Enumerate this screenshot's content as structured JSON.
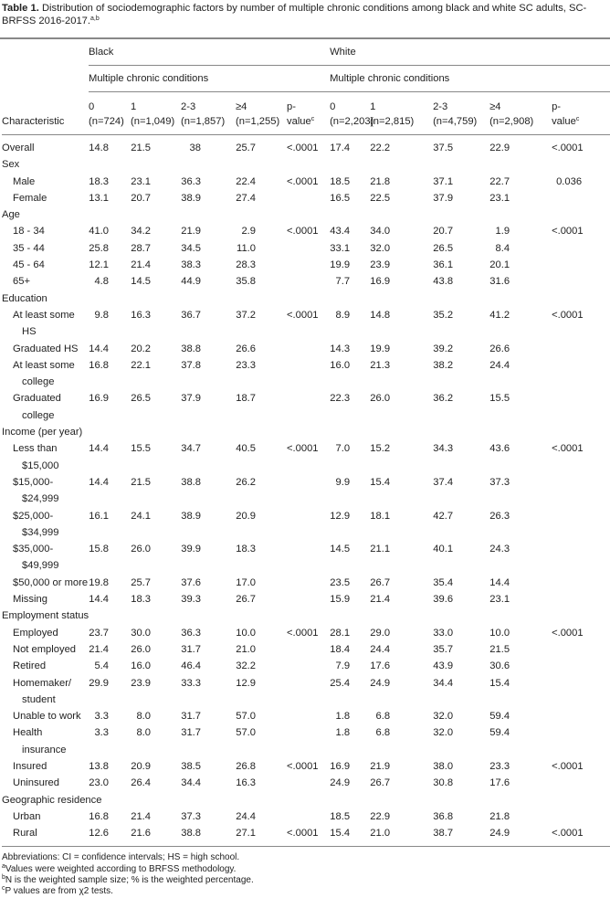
{
  "caption": {
    "label": "Table 1.",
    "text": "Distribution of sociodemographic factors by number of multiple chronic conditions among black and white SC adults, SC-BRFSS 2016-2017.",
    "sup": "a,b"
  },
  "groups": {
    "black": "Black",
    "white": "White",
    "sub": "Multiple chronic conditions"
  },
  "headers": {
    "characteristic": "Characteristic",
    "black": [
      {
        "l1": "0",
        "l2": "(n=724)"
      },
      {
        "l1": "1",
        "l2": "(n=1,049)"
      },
      {
        "l1": "2-3",
        "l2": "(n=1,857)"
      },
      {
        "l1": "≥4",
        "l2": "(n=1,255)"
      },
      {
        "l1": "p-",
        "l2": "value",
        "sup": "c"
      }
    ],
    "white": [
      {
        "l1": "0",
        "l2": "(n=2,203)"
      },
      {
        "l1": "1",
        "l2": "(n=2,815)"
      },
      {
        "l1": "2-3",
        "l2": "(n=4,759)"
      },
      {
        "l1": "≥4",
        "l2": "(n=2,908)"
      },
      {
        "l1": "p-",
        "l2": "value",
        "sup": "c"
      }
    ]
  },
  "rows": [
    {
      "label": "Overall",
      "top": true,
      "v": [
        "14.8",
        "21.5",
        "38",
        "25.7",
        "<.0001",
        "17.4",
        "22.2",
        "37.5",
        "22.9",
        "<.0001"
      ]
    },
    {
      "label": "Sex",
      "cat": true
    },
    {
      "label": "Male",
      "v": [
        "18.3",
        "23.1",
        "36.3",
        "22.4",
        "<.0001",
        "18.5",
        "21.8",
        "37.1",
        "22.7",
        "0.036"
      ]
    },
    {
      "label": "Female",
      "v": [
        "13.1",
        "20.7",
        "38.9",
        "27.4",
        "",
        "16.5",
        "22.5",
        "37.9",
        "23.1",
        ""
      ]
    },
    {
      "label": "Age",
      "cat": true
    },
    {
      "label": "18 - 34",
      "v": [
        "41.0",
        "34.2",
        "21.9",
        "2.9",
        "<.0001",
        "43.4",
        "34.0",
        "20.7",
        "1.9",
        "<.0001"
      ]
    },
    {
      "label": "35 - 44",
      "v": [
        "25.8",
        "28.7",
        "34.5",
        "11.0",
        "",
        "33.1",
        "32.0",
        "26.5",
        "8.4",
        ""
      ]
    },
    {
      "label": "45 - 64",
      "v": [
        "12.1",
        "21.4",
        "38.3",
        "28.3",
        "",
        "19.9",
        "23.9",
        "36.1",
        "20.1",
        ""
      ]
    },
    {
      "label": "65+",
      "v": [
        "4.8",
        "14.5",
        "44.9",
        "35.8",
        "",
        "7.7",
        "16.9",
        "43.8",
        "31.6",
        ""
      ]
    },
    {
      "label": "Education",
      "cat": true
    },
    {
      "label": "At least some HS",
      "v": [
        "9.8",
        "16.3",
        "36.7",
        "37.2",
        "<.0001",
        "8.9",
        "14.8",
        "35.2",
        "41.2",
        "<.0001"
      ]
    },
    {
      "label": "Graduated HS",
      "v": [
        "14.4",
        "20.2",
        "38.8",
        "26.6",
        "",
        "14.3",
        "19.9",
        "39.2",
        "26.6",
        ""
      ]
    },
    {
      "label": "At least some college",
      "v": [
        "16.8",
        "22.1",
        "37.8",
        "23.3",
        "",
        "16.0",
        "21.3",
        "38.2",
        "24.4",
        ""
      ]
    },
    {
      "label": "Graduated college",
      "v": [
        "16.9",
        "26.5",
        "37.9",
        "18.7",
        "",
        "22.3",
        "26.0",
        "36.2",
        "15.5",
        ""
      ]
    },
    {
      "label": "Income (per year)",
      "cat": true
    },
    {
      "label": "Less than $15,000",
      "v": [
        "14.4",
        "15.5",
        "34.7",
        "40.5",
        "<.0001",
        "7.0",
        "15.2",
        "34.3",
        "43.6",
        "<.0001"
      ]
    },
    {
      "label": "$15,000- $24,999",
      "v": [
        "14.4",
        "21.5",
        "38.8",
        "26.2",
        "",
        "9.9",
        "15.4",
        "37.4",
        "37.3",
        ""
      ]
    },
    {
      "label": "$25,000- $34,999",
      "v": [
        "16.1",
        "24.1",
        "38.9",
        "20.9",
        "",
        "12.9",
        "18.1",
        "42.7",
        "26.3",
        ""
      ]
    },
    {
      "label": "$35,000- $49,999",
      "v": [
        "15.8",
        "26.0",
        "39.9",
        "18.3",
        "",
        "14.5",
        "21.1",
        "40.1",
        "24.3",
        ""
      ]
    },
    {
      "label": "$50,000 or more",
      "v": [
        "19.8",
        "25.7",
        "37.6",
        "17.0",
        "",
        "23.5",
        "26.7",
        "35.4",
        "14.4",
        ""
      ]
    },
    {
      "label": "Missing",
      "v": [
        "14.4",
        "18.3",
        "39.3",
        "26.7",
        "",
        "15.9",
        "21.4",
        "39.6",
        "23.1",
        ""
      ]
    },
    {
      "label": "Employment status",
      "cat": true
    },
    {
      "label": "Employed",
      "v": [
        "23.7",
        "30.0",
        "36.3",
        "10.0",
        "<.0001",
        "28.1",
        "29.0",
        "33.0",
        "10.0",
        "<.0001"
      ]
    },
    {
      "label": "Not employed",
      "v": [
        "21.4",
        "26.0",
        "31.7",
        "21.0",
        "",
        "18.4",
        "24.4",
        "35.7",
        "21.5",
        ""
      ]
    },
    {
      "label": "Retired",
      "v": [
        "5.4",
        "16.0",
        "46.4",
        "32.2",
        "",
        "7.9",
        "17.6",
        "43.9",
        "30.6",
        ""
      ]
    },
    {
      "label": "Homemaker/ student",
      "v": [
        "29.9",
        "23.9",
        "33.3",
        "12.9",
        "",
        "25.4",
        "24.9",
        "34.4",
        "15.4",
        ""
      ]
    },
    {
      "label": "Unable to work",
      "v": [
        "3.3",
        "8.0",
        "31.7",
        "57.0",
        "",
        "1.8",
        "6.8",
        "32.0",
        "59.4",
        ""
      ]
    },
    {
      "label": "Health insurance",
      "v": [
        "3.3",
        "8.0",
        "31.7",
        "57.0",
        "",
        "1.8",
        "6.8",
        "32.0",
        "59.4",
        ""
      ]
    },
    {
      "label": "Insured",
      "v": [
        "13.8",
        "20.9",
        "38.5",
        "26.8",
        "<.0001",
        "16.9",
        "21.9",
        "38.0",
        "23.3",
        "<.0001"
      ]
    },
    {
      "label": "Uninsured",
      "v": [
        "23.0",
        "26.4",
        "34.4",
        "16.3",
        "",
        "24.9",
        "26.7",
        "30.8",
        "17.6",
        ""
      ]
    },
    {
      "label": "Geographic residence",
      "cat": true
    },
    {
      "label": "Urban",
      "v": [
        "16.8",
        "21.4",
        "37.3",
        "24.4",
        "",
        "18.5",
        "22.9",
        "36.8",
        "21.8",
        ""
      ]
    },
    {
      "label": "Rural",
      "last": true,
      "v": [
        "12.6",
        "21.6",
        "38.8",
        "27.1",
        "<.0001",
        "15.4",
        "21.0",
        "38.7",
        "24.9",
        "<.0001"
      ]
    }
  ],
  "footnotes": [
    {
      "sup": "",
      "text": "Abbreviations: CI = confidence intervals; HS = high school."
    },
    {
      "sup": "a",
      "text": "Values were weighted according to BRFSS methodology."
    },
    {
      "sup": "b",
      "text": "N is the weighted sample size; % is the weighted percentage."
    },
    {
      "sup": "c",
      "text": "P values are from χ2 tests."
    }
  ]
}
